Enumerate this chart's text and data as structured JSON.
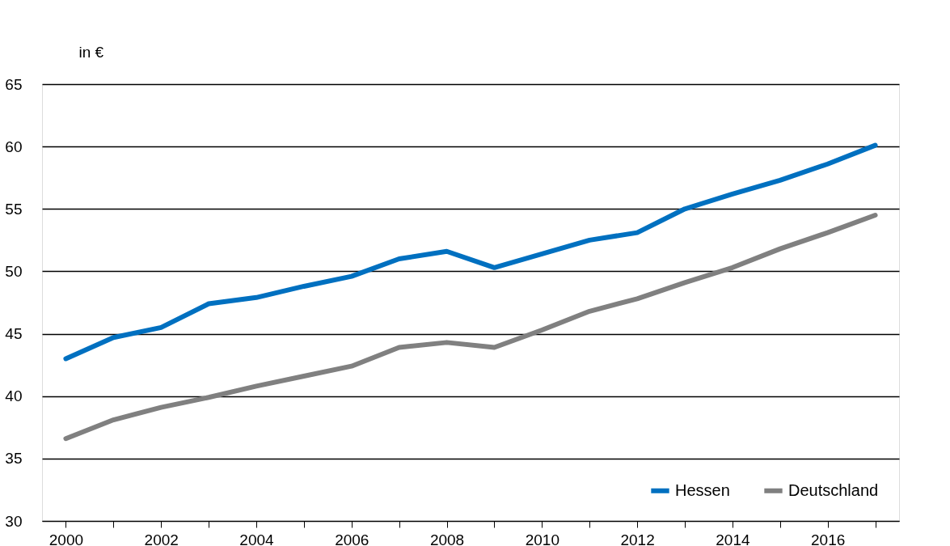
{
  "chart_data": {
    "type": "line",
    "ylabel": "in €",
    "categories": [
      "2000",
      null,
      "2002",
      null,
      "2004",
      null,
      "2006",
      null,
      "2008",
      null,
      "2010",
      null,
      "2012",
      null,
      "2014",
      null,
      "2016",
      null
    ],
    "series": [
      {
        "name": "Hessen",
        "color": "#0070c0",
        "values": [
          43.0,
          44.7,
          45.5,
          47.4,
          47.9,
          48.8,
          49.6,
          51.0,
          51.6,
          50.3,
          51.4,
          52.5,
          53.1,
          55.0,
          56.2,
          57.3,
          58.6,
          60.1
        ]
      },
      {
        "name": "Deutschland",
        "color": "#808080",
        "values": [
          36.6,
          38.1,
          39.1,
          39.9,
          40.8,
          41.6,
          42.4,
          43.9,
          44.3,
          43.9,
          45.3,
          46.8,
          47.8,
          49.1,
          50.3,
          51.8,
          53.1,
          54.5
        ]
      }
    ],
    "ylim": [
      30,
      65
    ],
    "yticks": [
      30,
      35,
      40,
      45,
      50,
      55,
      60,
      65
    ],
    "grid": "y",
    "legend": "bottom right",
    "marker": "none",
    "line_style": "solid"
  }
}
